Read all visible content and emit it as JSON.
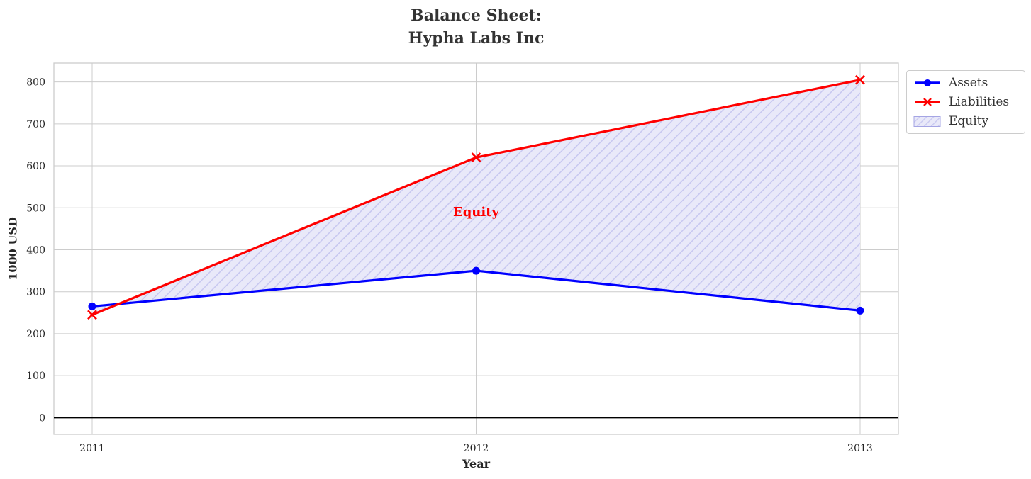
{
  "figure": {
    "title": "Balance Sheet:\nHypha Labs Inc",
    "xlabel": "Year",
    "ylabel": "1000 USD"
  },
  "legend": {
    "items": [
      {
        "label": "Assets",
        "color": "#0000ff",
        "marker": "circle"
      },
      {
        "label": "Liabilities",
        "color": "#ff0000",
        "marker": "x"
      },
      {
        "label": "Equity",
        "facecolor": "#e9e9f9",
        "hatchcolor": "#c7c7f0"
      }
    ]
  },
  "chart_data": {
    "type": "line",
    "title": "Balance Sheet:\nHypha Labs Inc",
    "xlabel": "Year",
    "ylabel": "1000 USD",
    "categories": [
      2011,
      2012,
      2013
    ],
    "series": [
      {
        "name": "Assets",
        "color": "#0000ff",
        "marker": "o",
        "values": [
          265,
          350,
          255
        ]
      },
      {
        "name": "Liabilities",
        "color": "#ff0000",
        "marker": "x",
        "values": [
          245,
          620,
          805
        ]
      }
    ],
    "fill_between": {
      "label": "Equity",
      "between": [
        "Assets",
        "Liabilities"
      ],
      "facecolor": "#e9e9f9",
      "hatch": "//",
      "hatchcolor": "#c7c7f0"
    },
    "annotation": {
      "text": "Equity",
      "x": 2012,
      "y": 490,
      "color": "#ff0000"
    },
    "yticks": [
      0,
      100,
      200,
      300,
      400,
      500,
      600,
      700,
      800
    ],
    "ylim": [
      -40,
      845
    ],
    "grid": true,
    "grid_color": "#cccccc",
    "zero_line": true,
    "zero_line_color": "#000000",
    "legend_position": "outside upper right"
  }
}
